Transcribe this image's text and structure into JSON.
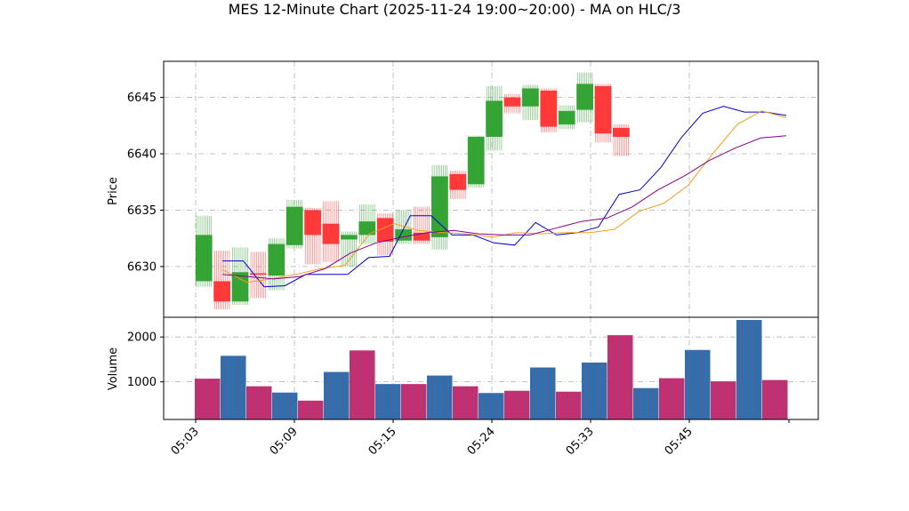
{
  "title": "MES 12-Minute Chart (2025-11-24 19:00~20:00) - MA on HLC/3",
  "price_axis_label": "Price",
  "volume_axis_label": "Volume",
  "colors": {
    "up": "#2ca02c",
    "down": "#ff3030",
    "ma_fast": "#0000cc",
    "ma_mid": "#f0a020",
    "ma_slow": "#8b008b",
    "grid": "#b0b0b0",
    "vol_a": "#1f77b4",
    "vol_b": "#d62768"
  },
  "chart_data": [
    {
      "type": "candlestick",
      "title": "MES 12-Minute Chart (2025-11-24 19:00~20:00) - MA on HLC/3",
      "ylabel": "Price",
      "ylim": [
        6625.5,
        6648.2
      ],
      "y_ticks": [
        6630,
        6635,
        6640,
        6645
      ],
      "x_tick_labels": [
        "05:03",
        "05:09",
        "05:15",
        "05:24",
        "05:33",
        "05:45",
        ""
      ],
      "grid": true,
      "bars": [
        {
          "open": 6628.7,
          "high": 6634.5,
          "low": 6628.2,
          "close": 6632.8
        },
        {
          "open": 6628.7,
          "high": 6631.4,
          "low": 6626.2,
          "close": 6626.9
        },
        {
          "open": 6626.9,
          "high": 6631.7,
          "low": 6626.6,
          "close": 6629.5
        },
        {
          "open": 6629.4,
          "high": 6631.3,
          "low": 6627.2,
          "close": 6629.3
        },
        {
          "open": 6629.2,
          "high": 6632.5,
          "low": 6627.9,
          "close": 6632.0
        },
        {
          "open": 6631.9,
          "high": 6635.9,
          "low": 6631.6,
          "close": 6635.3
        },
        {
          "open": 6635.0,
          "high": 6635.2,
          "low": 6630.2,
          "close": 6632.8
        },
        {
          "open": 6633.8,
          "high": 6635.8,
          "low": 6630.4,
          "close": 6632.0
        },
        {
          "open": 6632.4,
          "high": 6633.1,
          "low": 6630.0,
          "close": 6632.8
        },
        {
          "open": 6632.8,
          "high": 6635.5,
          "low": 6632.0,
          "close": 6634.0
        },
        {
          "open": 6634.3,
          "high": 6634.7,
          "low": 6631.0,
          "close": 6632.2
        },
        {
          "open": 6632.3,
          "high": 6635.0,
          "low": 6632.0,
          "close": 6633.3
        },
        {
          "open": 6633.0,
          "high": 6635.3,
          "low": 6632.0,
          "close": 6632.3
        },
        {
          "open": 6632.6,
          "high": 6639.0,
          "low": 6631.5,
          "close": 6638.0
        },
        {
          "open": 6638.2,
          "high": 6638.5,
          "low": 6636.0,
          "close": 6636.8
        },
        {
          "open": 6637.3,
          "high": 6641.6,
          "low": 6637.0,
          "close": 6641.5
        },
        {
          "open": 6641.5,
          "high": 6646.0,
          "low": 6640.3,
          "close": 6644.7
        },
        {
          "open": 6645.0,
          "high": 6645.3,
          "low": 6643.6,
          "close": 6644.2
        },
        {
          "open": 6644.2,
          "high": 6646.1,
          "low": 6643.0,
          "close": 6645.8
        },
        {
          "open": 6645.6,
          "high": 6645.8,
          "low": 6641.9,
          "close": 6642.4
        },
        {
          "open": 6642.6,
          "high": 6644.3,
          "low": 6642.2,
          "close": 6643.8
        },
        {
          "open": 6643.9,
          "high": 6647.2,
          "low": 6642.8,
          "close": 6646.2
        },
        {
          "open": 6646.0,
          "high": 6646.2,
          "low": 6641.0,
          "close": 6641.8
        },
        {
          "open": 6642.3,
          "high": 6642.6,
          "low": 6639.8,
          "close": 6641.5
        }
      ],
      "series": [
        {
          "values": [
            6630.5,
            6630.5,
            6628.2,
            6628.3,
            6629.3,
            6629.3,
            6629.3,
            6630.8,
            6630.9,
            6634.5,
            6634.5,
            6632.8,
            6632.8,
            6632.1,
            6631.9,
            6633.9,
            6632.8,
            6633.0,
            6633.5,
            6636.4,
            6636.8,
            6638.8,
            6641.5,
            6643.6,
            6644.2,
            6643.7,
            6643.7,
            6643.4
          ]
        },
        {
          "values": [
            6629.7,
            6628.6,
            6628.9,
            6629.3,
            6629.8,
            6630.1,
            6632.9,
            6633.8,
            6633.2,
            6633.0,
            6632.9,
            6632.6,
            6633.0,
            6632.9,
            6633.0,
            6633.0,
            6633.3,
            6634.9,
            6635.6,
            6637.2,
            6640.0,
            6642.6,
            6643.8,
            6643.2
          ]
        },
        {
          "values": [
            6629.3,
            6629.1,
            6628.9,
            6629.1,
            6629.8,
            6631.2,
            6632.1,
            6632.6,
            6633.0,
            6633.2,
            6632.9,
            6632.8,
            6632.8,
            6633.4,
            6634.0,
            6634.3,
            6635.3,
            6636.8,
            6638.0,
            6639.4,
            6640.5,
            6641.4,
            6641.6
          ]
        }
      ]
    },
    {
      "type": "bar",
      "ylabel": "Volume",
      "ylim": [
        160,
        2440
      ],
      "y_ticks": [
        1000,
        2000
      ],
      "grid": true,
      "values": [
        1070,
        1580,
        900,
        760,
        580,
        1220,
        1700,
        950,
        950,
        1140,
        900,
        750,
        800,
        1320,
        780,
        1430,
        2040,
        860,
        1080,
        1710,
        1010,
        2380,
        1040
      ]
    }
  ]
}
